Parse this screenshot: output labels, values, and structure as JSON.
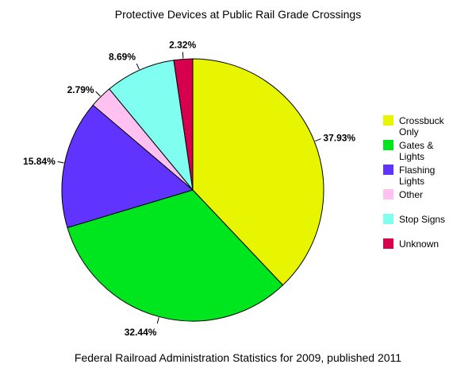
{
  "chart_data": {
    "type": "pie",
    "title": "Protective Devices at Public Rail Grade Crossings",
    "caption": "Federal Railroad Administration Statistics for 2009, published 2011",
    "slices": [
      {
        "label": "Crossbuck Only",
        "legend_lines": [
          "Crossbuck",
          "Only"
        ],
        "value": 37.93,
        "value_label": "37.93%",
        "color": "#e8f500"
      },
      {
        "label": "Gates & Lights",
        "legend_lines": [
          "Gates &",
          "Lights"
        ],
        "value": 32.44,
        "value_label": "32.44%",
        "color": "#00e61e"
      },
      {
        "label": "Flashing Lights",
        "legend_lines": [
          "Flashing",
          "Lights"
        ],
        "value": 15.84,
        "value_label": "15.84%",
        "color": "#6133ff"
      },
      {
        "label": "Other",
        "legend_lines": [
          "Other"
        ],
        "value": 2.79,
        "value_label": "2.79%",
        "color": "#ffc2f0"
      },
      {
        "label": "Stop Signs",
        "legend_lines": [
          "Stop Signs"
        ],
        "value": 8.69,
        "value_label": "8.69%",
        "color": "#80fff0"
      },
      {
        "label": "Unknown",
        "legend_lines": [
          "Unknown"
        ],
        "value": 2.32,
        "value_label": "2.32%",
        "color": "#d6004f"
      }
    ],
    "legend_position": "right"
  }
}
